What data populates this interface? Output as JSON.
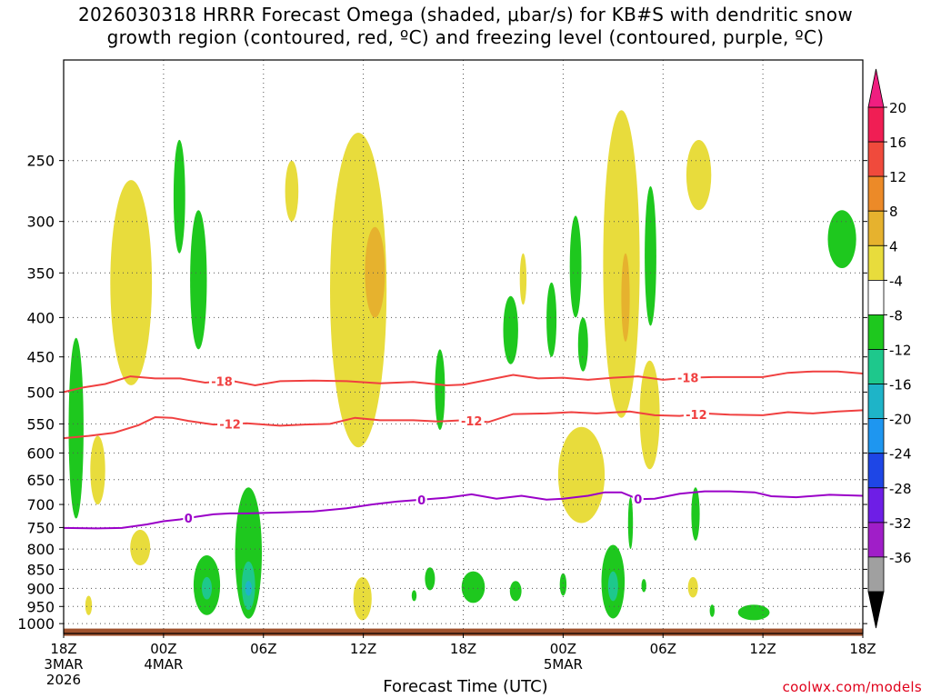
{
  "title": {
    "line1": "2026030318 HRRR Forecast Omega (shaded, μbar/s) for KB#S with dendritic snow",
    "line2": "growth region (contoured, red, ºC) and freezing level (contoured, purple, ºC)"
  },
  "credit": "coolwx.com/models",
  "chart_data": {
    "type": "heatmap",
    "title": "2026030318 HRRR Forecast Omega (shaded, μbar/s) for KB#S with dendritic snow growth region (contoured, red, ºC) and freezing level (contoured, purple, ºC)",
    "xlabel": "Forecast Time (UTC)",
    "ylabel": "",
    "x_range_hours": [
      0,
      48
    ],
    "y_range_hpa": [
      1030,
      185
    ],
    "x_ticks": [
      {
        "hour": 0,
        "label": "18Z",
        "sub1": "3MAR",
        "sub2": "2026"
      },
      {
        "hour": 6,
        "label": "00Z",
        "sub1": "4MAR",
        "sub2": ""
      },
      {
        "hour": 12,
        "label": "06Z",
        "sub1": "",
        "sub2": ""
      },
      {
        "hour": 18,
        "label": "12Z",
        "sub1": "",
        "sub2": ""
      },
      {
        "hour": 24,
        "label": "18Z",
        "sub1": "",
        "sub2": ""
      },
      {
        "hour": 30,
        "label": "00Z",
        "sub1": "5MAR",
        "sub2": ""
      },
      {
        "hour": 36,
        "label": "06Z",
        "sub1": "",
        "sub2": ""
      },
      {
        "hour": 42,
        "label": "12Z",
        "sub1": "",
        "sub2": ""
      },
      {
        "hour": 48,
        "label": "18Z",
        "sub1": "",
        "sub2": ""
      }
    ],
    "y_ticks": [
      {
        "p": 250,
        "label": "250"
      },
      {
        "p": 300,
        "label": "300"
      },
      {
        "p": 350,
        "label": "350"
      },
      {
        "p": 400,
        "label": "400"
      },
      {
        "p": 450,
        "label": "450"
      },
      {
        "p": 500,
        "label": "500"
      },
      {
        "p": 550,
        "label": "550"
      },
      {
        "p": 600,
        "label": "600"
      },
      {
        "p": 650,
        "label": "650"
      },
      {
        "p": 700,
        "label": "700"
      },
      {
        "p": 750,
        "label": "750"
      },
      {
        "p": 800,
        "label": "800"
      },
      {
        "p": 850,
        "label": "850"
      },
      {
        "p": 900,
        "label": "900"
      },
      {
        "p": 950,
        "label": "950"
      },
      {
        "p": 1000,
        "label": "1000"
      }
    ],
    "colorbar": {
      "labels": [
        "20",
        "16",
        "12",
        "8",
        "4",
        "-4",
        "-8",
        "-12",
        "-16",
        "-20",
        "-24",
        "-28",
        "-32",
        "-36"
      ],
      "colors": [
        "#f01e54",
        "#f04a3c",
        "#ec8a28",
        "#e6b22e",
        "#e8dc3c",
        "#ffffff",
        "#1ec81e",
        "#1ec88c",
        "#1eb4c8",
        "#1e96f0",
        "#1e46e6",
        "#6e1ee6",
        "#a01ec8",
        "#a0a0a0"
      ],
      "top_tip_color": "#f01e80",
      "bottom_tip_color": "#000000"
    },
    "contours": [
      {
        "name": "dendritic -18C",
        "color": "#f04040",
        "label": "-18",
        "label_hours": [
          9.5,
          37.5
        ],
        "points": [
          [
            0,
            500
          ],
          [
            1.2,
            493
          ],
          [
            2.5,
            488
          ],
          [
            4,
            477
          ],
          [
            5.5,
            480
          ],
          [
            7,
            480
          ],
          [
            8.5,
            486
          ],
          [
            10,
            483
          ],
          [
            11.5,
            490
          ],
          [
            13,
            484
          ],
          [
            15,
            483
          ],
          [
            17,
            484
          ],
          [
            19,
            487
          ],
          [
            21,
            485
          ],
          [
            23,
            490
          ],
          [
            24,
            489
          ],
          [
            25.5,
            482
          ],
          [
            27,
            475
          ],
          [
            28.5,
            480
          ],
          [
            30,
            479
          ],
          [
            31.5,
            482
          ],
          [
            33,
            479
          ],
          [
            34.5,
            477
          ],
          [
            36,
            482
          ],
          [
            37.5,
            479
          ],
          [
            39,
            478
          ],
          [
            40.5,
            478
          ],
          [
            42,
            478
          ],
          [
            43.5,
            472
          ],
          [
            45,
            470
          ],
          [
            46.5,
            470
          ],
          [
            48,
            473
          ]
        ]
      },
      {
        "name": "dendritic -12C",
        "color": "#f04040",
        "label": "-12",
        "label_hours": [
          10,
          24.5,
          38
        ],
        "points": [
          [
            0,
            574
          ],
          [
            1.5,
            570
          ],
          [
            3,
            565
          ],
          [
            4.5,
            552
          ],
          [
            5.5,
            539
          ],
          [
            6.5,
            540
          ],
          [
            7.5,
            545
          ],
          [
            9,
            551
          ],
          [
            11,
            549
          ],
          [
            13,
            553
          ],
          [
            14.5,
            551
          ],
          [
            16,
            550
          ],
          [
            17.5,
            540
          ],
          [
            19,
            544
          ],
          [
            21,
            544
          ],
          [
            22.5,
            546
          ],
          [
            24,
            544
          ],
          [
            25.5,
            547
          ],
          [
            27,
            534
          ],
          [
            29,
            533
          ],
          [
            30.5,
            531
          ],
          [
            32,
            533
          ],
          [
            34,
            530
          ],
          [
            35.5,
            536
          ],
          [
            37,
            537
          ],
          [
            38.5,
            533
          ],
          [
            40,
            535
          ],
          [
            42,
            536
          ],
          [
            43.5,
            531
          ],
          [
            45,
            533
          ],
          [
            46.5,
            530
          ],
          [
            48,
            528
          ]
        ]
      },
      {
        "name": "freezing level 0C",
        "color": "#9a00c8",
        "label": "0",
        "label_hours": [
          7.5,
          21.5,
          34.5
        ],
        "points": [
          [
            0,
            751
          ],
          [
            2,
            752
          ],
          [
            3.5,
            751
          ],
          [
            5,
            743
          ],
          [
            6,
            736
          ],
          [
            7,
            732
          ],
          [
            8,
            726
          ],
          [
            9,
            721
          ],
          [
            10,
            719
          ],
          [
            11,
            719
          ],
          [
            13,
            717
          ],
          [
            15,
            715
          ],
          [
            17,
            708
          ],
          [
            18.5,
            700
          ],
          [
            20,
            694
          ],
          [
            21.5,
            690
          ],
          [
            23,
            686
          ],
          [
            24.5,
            679
          ],
          [
            26,
            688
          ],
          [
            27.5,
            682
          ],
          [
            29,
            690
          ],
          [
            30,
            688
          ],
          [
            31.5,
            682
          ],
          [
            32.5,
            675
          ],
          [
            33.5,
            675
          ],
          [
            34.5,
            689
          ],
          [
            35.5,
            688
          ],
          [
            37,
            678
          ],
          [
            38.5,
            673
          ],
          [
            40,
            673
          ],
          [
            41.5,
            675
          ],
          [
            42.5,
            683
          ],
          [
            44,
            685
          ],
          [
            46,
            680
          ],
          [
            48,
            682
          ]
        ]
      }
    ],
    "omega_regions": [
      {
        "sign": "rising",
        "value_band": "-4 to -8",
        "hours": [
          0.3,
          1.2
        ],
        "hpa": [
          425,
          730
        ]
      },
      {
        "sign": "sinking",
        "value_band": "4 to 8",
        "hours": [
          1.6,
          2.5
        ],
        "hpa": [
          570,
          700
        ]
      },
      {
        "sign": "sinking",
        "value_band": "4 to 8",
        "hours": [
          1.3,
          1.7
        ],
        "hpa": [
          920,
          975
        ]
      },
      {
        "sign": "sinking",
        "value_band": "4 to 8",
        "hours": [
          2.8,
          5.3
        ],
        "hpa": [
          265,
          490
        ]
      },
      {
        "sign": "sinking",
        "value_band": "4 to 8",
        "hours": [
          4.0,
          5.2
        ],
        "hpa": [
          755,
          840
        ]
      },
      {
        "sign": "rising",
        "value_band": "-4 to -8",
        "hours": [
          6.6,
          7.3
        ],
        "hpa": [
          235,
          330
        ]
      },
      {
        "sign": "rising",
        "value_band": "-4 to -8",
        "hours": [
          7.6,
          8.6
        ],
        "hpa": [
          290,
          440
        ]
      },
      {
        "sign": "rising",
        "value_band": "-4 to -8",
        "hours": [
          7.8,
          9.4
        ],
        "hpa": [
          815,
          975
        ]
      },
      {
        "sign": "rising",
        "value_band": "-8 to -12",
        "hours": [
          8.3,
          8.9
        ],
        "hpa": [
          870,
          930
        ]
      },
      {
        "sign": "rising",
        "value_band": "-4 to -8",
        "hours": [
          10.3,
          11.9
        ],
        "hpa": [
          665,
          985
        ]
      },
      {
        "sign": "rising",
        "value_band": "-8 to -12",
        "hours": [
          10.7,
          11.5
        ],
        "hpa": [
          830,
          960
        ]
      },
      {
        "sign": "rising",
        "value_band": "-12 to -16",
        "hours": [
          10.9,
          11.3
        ],
        "hpa": [
          880,
          920
        ]
      },
      {
        "sign": "sinking",
        "value_band": "4 to 8",
        "hours": [
          13.3,
          14.1
        ],
        "hpa": [
          250,
          300
        ]
      },
      {
        "sign": "sinking",
        "value_band": "4 to 8",
        "hours": [
          16.0,
          19.4
        ],
        "hpa": [
          230,
          590
        ]
      },
      {
        "sign": "sinking",
        "value_band": "8 to 12",
        "hours": [
          18.1,
          19.3
        ],
        "hpa": [
          305,
          400
        ]
      },
      {
        "sign": "sinking",
        "value_band": "4 to 8",
        "hours": [
          17.4,
          18.5
        ],
        "hpa": [
          870,
          990
        ]
      },
      {
        "sign": "rising",
        "value_band": "-4 to -8",
        "hours": [
          22.3,
          22.9
        ],
        "hpa": [
          440,
          560
        ]
      },
      {
        "sign": "rising",
        "value_band": "-4 to -8",
        "hours": [
          20.9,
          21.2
        ],
        "hpa": [
          905,
          935
        ]
      },
      {
        "sign": "rising",
        "value_band": "-4 to -8",
        "hours": [
          21.7,
          22.3
        ],
        "hpa": [
          845,
          905
        ]
      },
      {
        "sign": "rising",
        "value_band": "-4 to -8",
        "hours": [
          23.9,
          25.3
        ],
        "hpa": [
          855,
          940
        ]
      },
      {
        "sign": "rising",
        "value_band": "-4 to -8",
        "hours": [
          26.4,
          27.3
        ],
        "hpa": [
          375,
          460
        ]
      },
      {
        "sign": "rising",
        "value_band": "-4 to -8",
        "hours": [
          29.0,
          29.6
        ],
        "hpa": [
          360,
          450
        ]
      },
      {
        "sign": "sinking",
        "value_band": "4 to 8",
        "hours": [
          27.4,
          27.8
        ],
        "hpa": [
          330,
          385
        ]
      },
      {
        "sign": "rising",
        "value_band": "-4 to -8",
        "hours": [
          26.8,
          27.5
        ],
        "hpa": [
          880,
          935
        ]
      },
      {
        "sign": "sinking",
        "value_band": "4 to 8",
        "hours": [
          29.7,
          32.5
        ],
        "hpa": [
          555,
          740
        ]
      },
      {
        "sign": "rising",
        "value_band": "-4 to -8",
        "hours": [
          30.4,
          31.1
        ],
        "hpa": [
          295,
          400
        ]
      },
      {
        "sign": "rising",
        "value_band": "-4 to -8",
        "hours": [
          30.9,
          31.5
        ],
        "hpa": [
          400,
          470
        ]
      },
      {
        "sign": "rising",
        "value_band": "-4 to -8",
        "hours": [
          29.8,
          30.2
        ],
        "hpa": [
          860,
          920
        ]
      },
      {
        "sign": "sinking",
        "value_band": "4 to 8",
        "hours": [
          32.4,
          34.6
        ],
        "hpa": [
          215,
          540
        ]
      },
      {
        "sign": "sinking",
        "value_band": "8 to 12",
        "hours": [
          33.5,
          34.0
        ],
        "hpa": [
          330,
          430
        ]
      },
      {
        "sign": "sinking",
        "value_band": "4 to 8",
        "hours": [
          34.6,
          35.8
        ],
        "hpa": [
          455,
          630
        ]
      },
      {
        "sign": "rising",
        "value_band": "-4 to -8",
        "hours": [
          34.9,
          35.6
        ],
        "hpa": [
          270,
          410
        ]
      },
      {
        "sign": "rising",
        "value_band": "-4 to -8",
        "hours": [
          32.3,
          33.7
        ],
        "hpa": [
          790,
          985
        ]
      },
      {
        "sign": "rising",
        "value_band": "-8 to -12",
        "hours": [
          32.7,
          33.3
        ],
        "hpa": [
          855,
          935
        ]
      },
      {
        "sign": "rising",
        "value_band": "-4 to -8",
        "hours": [
          33.9,
          34.2
        ],
        "hpa": [
          685,
          800
        ]
      },
      {
        "sign": "rising",
        "value_band": "-4 to -8",
        "hours": [
          34.7,
          35.0
        ],
        "hpa": [
          875,
          910
        ]
      },
      {
        "sign": "sinking",
        "value_band": "4 to 8",
        "hours": [
          37.4,
          38.9
        ],
        "hpa": [
          235,
          290
        ]
      },
      {
        "sign": "rising",
        "value_band": "-4 to -8",
        "hours": [
          37.7,
          38.2
        ],
        "hpa": [
          665,
          780
        ]
      },
      {
        "sign": "sinking",
        "value_band": "4 to 8",
        "hours": [
          37.5,
          38.1
        ],
        "hpa": [
          870,
          925
        ]
      },
      {
        "sign": "rising",
        "value_band": "-4 to -8",
        "hours": [
          38.8,
          39.1
        ],
        "hpa": [
          945,
          980
        ]
      },
      {
        "sign": "rising",
        "value_band": "-4 to -8",
        "hours": [
          40.5,
          42.4
        ],
        "hpa": [
          945,
          990
        ]
      },
      {
        "sign": "rising",
        "value_band": "-4 to -8",
        "hours": [
          45.9,
          47.6
        ],
        "hpa": [
          290,
          345
        ]
      }
    ],
    "ground_band_hpa": [
      1015,
      1025
    ],
    "ground_color": "#a0522d"
  }
}
